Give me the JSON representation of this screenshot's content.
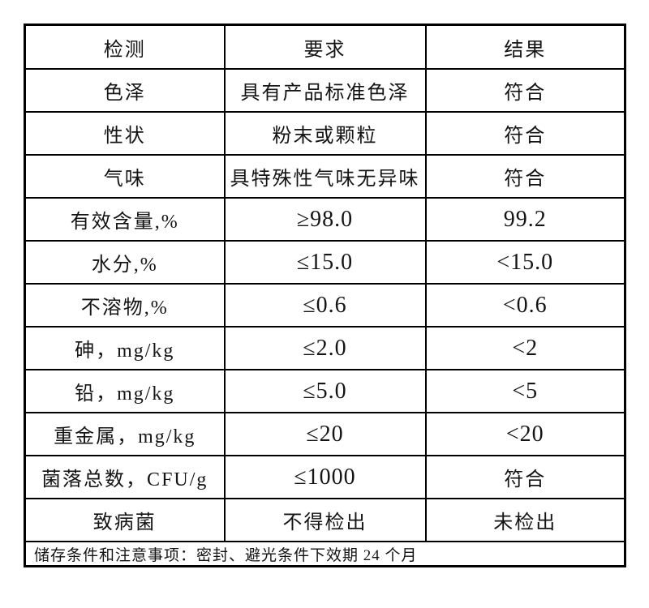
{
  "table": {
    "columns": [
      "检测",
      "要求",
      "结果"
    ],
    "rows": [
      {
        "item": "色泽",
        "requirement": "具有产品标准色泽",
        "result": "符合"
      },
      {
        "item": "性状",
        "requirement": "粉末或颗粒",
        "result": "符合"
      },
      {
        "item": "气味",
        "requirement": "具特殊性气味无异味",
        "result": "符合"
      },
      {
        "item": "有效含量,%",
        "requirement": "≥98.0",
        "result": "99.2"
      },
      {
        "item": "水分,%",
        "requirement": "≤15.0",
        "result": "<15.0"
      },
      {
        "item": "不溶物,%",
        "requirement": "≤0.6",
        "result": "<0.6"
      },
      {
        "item": "砷，mg/kg",
        "requirement": "≤2.0",
        "result": "<2"
      },
      {
        "item": "铅，mg/kg",
        "requirement": "≤5.0",
        "result": "<5"
      },
      {
        "item": "重金属，mg/kg",
        "requirement": "≤20",
        "result": "<20"
      },
      {
        "item": "菌落总数，CFU/g",
        "requirement": "≤1000",
        "result": "符合"
      },
      {
        "item": "致病菌",
        "requirement": "不得检出",
        "result": "未检出"
      }
    ],
    "footer": "储存条件和注意事项：密封、避光条件下效期 24 个月"
  }
}
